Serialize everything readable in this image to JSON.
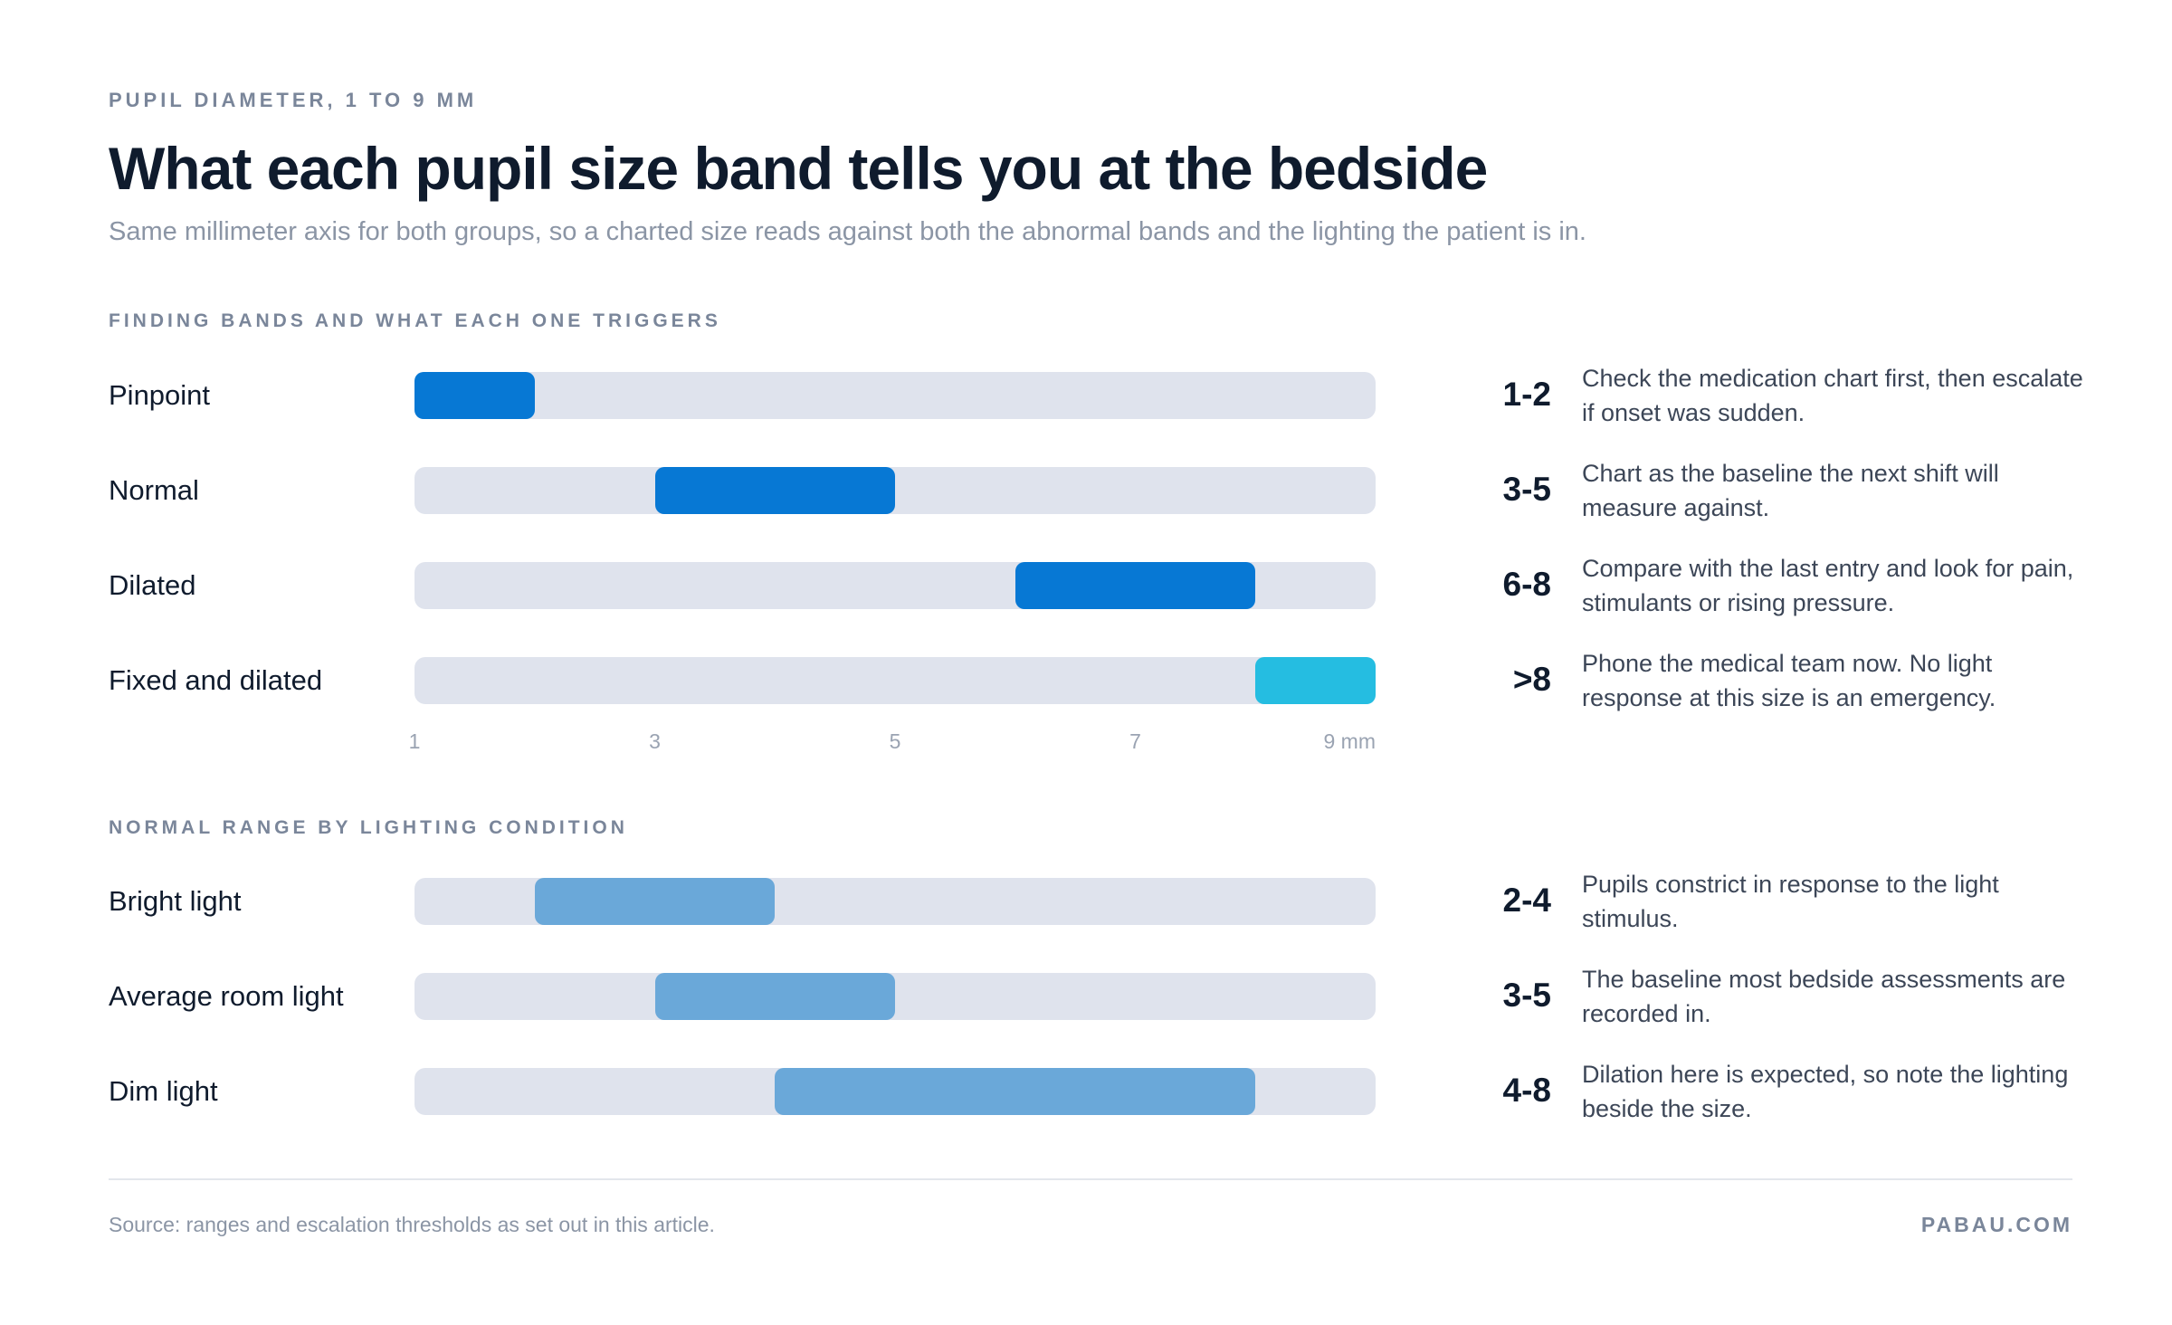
{
  "header": {
    "eyebrow": "PUPIL DIAMETER, 1 TO 9 MM",
    "title": "What each pupil size band tells you at the bedside",
    "subtitle": "Same millimeter axis for both groups, so a charted size reads against both the abnormal bands and the lighting the patient is in."
  },
  "chart_data": [
    {
      "type": "bar",
      "title": "FINDING BANDS AND WHAT EACH ONE TRIGGERS",
      "xlim": [
        1,
        9
      ],
      "x_unit": "mm",
      "ticks": [
        "1",
        "3",
        "5",
        "7",
        "9 mm"
      ],
      "grid": false,
      "rows": [
        {
          "label": "Pinpoint",
          "start": 1,
          "end": 2,
          "range_label": "1-2",
          "color": "#0778d4",
          "note": "Check the medication chart first, then escalate if onset was sudden."
        },
        {
          "label": "Normal",
          "start": 3,
          "end": 5,
          "range_label": "3-5",
          "color": "#0778d4",
          "note": "Chart as the baseline the next shift will measure against."
        },
        {
          "label": "Dilated",
          "start": 6,
          "end": 8,
          "range_label": "6-8",
          "color": "#0778d4",
          "note": "Compare with the last entry and look for pain, stimulants or rising pressure."
        },
        {
          "label": "Fixed and dilated",
          "start": 8,
          "end": 9,
          "range_label": ">8",
          "color": "#25bde1",
          "note": "Phone the medical team now. No light response at this size is an emergency."
        }
      ]
    },
    {
      "type": "bar",
      "title": "NORMAL RANGE BY LIGHTING CONDITION",
      "xlim": [
        1,
        9
      ],
      "x_unit": "mm",
      "grid": false,
      "rows": [
        {
          "label": "Bright light",
          "start": 2,
          "end": 4,
          "range_label": "2-4",
          "color": "#6aa8d9",
          "note": "Pupils constrict in response to the light stimulus."
        },
        {
          "label": "Average room light",
          "start": 3,
          "end": 5,
          "range_label": "3-5",
          "color": "#6aa8d9",
          "note": "The baseline most bedside assessments are recorded in."
        },
        {
          "label": "Dim light",
          "start": 4,
          "end": 8,
          "range_label": "4-8",
          "color": "#6aa8d9",
          "note": "Dilation here is expected, so note the lighting beside the size."
        }
      ]
    }
  ],
  "footer": {
    "source": "Source: ranges and escalation thresholds as set out in this article.",
    "brand": "PABAU.COM"
  }
}
